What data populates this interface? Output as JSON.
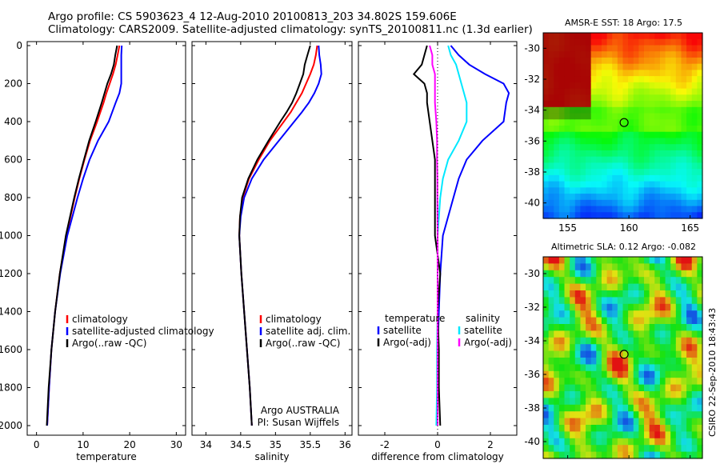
{
  "header": {
    "line1": "Argo profile: CS 5903623_4 12-Aug-2010 20100813_203 34.802S 159.606E",
    "line2": "Climatology: CARS2009. Satellite-adjusted climatology: synTS_20100811.nc (1.3d earlier)"
  },
  "sidebar_text": "CSIRO 22-Sep-2010 18:43:43",
  "colors": {
    "red": "#ff0000",
    "blue": "#0000ff",
    "black": "#000000",
    "cyan": "#00e8ff",
    "magenta": "#ff00ff"
  },
  "chart_data": [
    {
      "type": "line",
      "xlabel": "temperature",
      "xlim": [
        -2,
        32
      ],
      "ylim": [
        2050,
        0
      ],
      "xticks": [
        "0",
        "10",
        "20",
        "30"
      ],
      "yticks": [
        "0",
        "200",
        "400",
        "600",
        "800",
        "1000",
        "1200",
        "1400",
        "1600",
        "1800",
        "2000"
      ],
      "legend": [
        "climatology",
        "satellite-adjusted climatology",
        "Argo(..raw -QC)"
      ],
      "depth": [
        0,
        50,
        100,
        150,
        200,
        250,
        300,
        400,
        500,
        600,
        700,
        800,
        1000,
        1200,
        1400,
        1600,
        1800,
        2000
      ],
      "series": [
        {
          "name": "climatology",
          "color": "red",
          "values": [
            17.8,
            17.4,
            17.0,
            16.4,
            15.7,
            15.0,
            14.4,
            13.0,
            11.5,
            10.3,
            9.2,
            8.2,
            6.4,
            5.0,
            4.0,
            3.2,
            2.7,
            2.3
          ]
        },
        {
          "name": "satellite-adjusted climatology",
          "color": "blue",
          "values": [
            18.3,
            18.2,
            18.2,
            18.2,
            18.2,
            17.8,
            17.0,
            15.5,
            13.2,
            11.4,
            10.0,
            8.8,
            6.6,
            5.1,
            4.0,
            3.2,
            2.7,
            2.3
          ]
        },
        {
          "name": "Argo(..raw -QC)",
          "color": "black",
          "values": [
            17.3,
            16.9,
            16.6,
            16.0,
            15.2,
            14.6,
            14.0,
            12.7,
            11.3,
            10.2,
            9.1,
            8.1,
            6.3,
            5.0,
            4.0,
            3.2,
            2.6,
            2.2
          ]
        }
      ]
    },
    {
      "type": "line",
      "xlabel": "salinity",
      "xlim": [
        33.8,
        36.1
      ],
      "ylim": [
        2050,
        0
      ],
      "xticks": [
        "34",
        "34.5",
        "35",
        "35.5",
        "36"
      ],
      "legend": [
        "climatology",
        "satellite adj. clim.",
        "Argo(..raw -QC)"
      ],
      "annotations": [
        "Argo AUSTRALIA",
        "PI: Susan Wijffels"
      ],
      "depth": [
        0,
        50,
        100,
        150,
        200,
        250,
        300,
        350,
        400,
        500,
        600,
        700,
        800,
        900,
        1000,
        1200,
        1400,
        1600,
        1800,
        2000
      ],
      "series": [
        {
          "name": "climatology",
          "color": "red",
          "values": [
            35.6,
            35.58,
            35.55,
            35.5,
            35.44,
            35.38,
            35.3,
            35.22,
            35.12,
            34.92,
            34.76,
            34.62,
            34.53,
            34.49,
            34.48,
            34.51,
            34.55,
            34.59,
            34.63,
            34.66
          ]
        },
        {
          "name": "satellite adj. clim.",
          "color": "blue",
          "values": [
            35.62,
            35.63,
            35.65,
            35.66,
            35.62,
            35.56,
            35.48,
            35.38,
            35.27,
            35.05,
            34.83,
            34.66,
            34.55,
            34.5,
            34.48,
            34.51,
            34.55,
            34.59,
            34.63,
            34.66
          ]
        },
        {
          "name": "Argo(..raw -QC)",
          "color": "black",
          "values": [
            35.5,
            35.46,
            35.42,
            35.4,
            35.35,
            35.3,
            35.24,
            35.16,
            35.07,
            34.9,
            34.74,
            34.61,
            34.52,
            34.49,
            34.48,
            34.51,
            34.55,
            34.59,
            34.63,
            34.66
          ]
        }
      ]
    },
    {
      "type": "line",
      "xlabel": "difference from climatology",
      "xlim": [
        -3,
        3
      ],
      "ylim": [
        2050,
        0
      ],
      "xticks": [
        "-2",
        "0",
        "2"
      ],
      "legend_left": {
        "title": "temperature",
        "items": [
          "satellite",
          "Argo(-adj)"
        ]
      },
      "legend_right": {
        "title": "salinity",
        "items": [
          "satellite",
          "Argo(-adj)"
        ]
      },
      "depth": [
        0,
        50,
        100,
        150,
        200,
        250,
        300,
        400,
        500,
        600,
        700,
        800,
        1000,
        1200,
        1400,
        1600,
        1800,
        2000
      ],
      "series": [
        {
          "name": "temperature satellite",
          "color": "blue",
          "values": [
            0.5,
            0.8,
            1.2,
            1.8,
            2.5,
            2.7,
            2.6,
            2.5,
            1.7,
            1.1,
            0.8,
            0.6,
            0.2,
            0.1,
            0.05,
            0.0,
            0.0,
            0.0
          ]
        },
        {
          "name": "temperature Argo(-adj)",
          "color": "black",
          "values": [
            -0.4,
            -0.5,
            -0.6,
            -0.9,
            -0.5,
            -0.4,
            -0.4,
            -0.3,
            -0.2,
            -0.1,
            -0.1,
            -0.1,
            -0.1,
            0.1,
            0.0,
            0.05,
            0.05,
            0.1
          ]
        },
        {
          "name": "salinity satellite",
          "color": "cyan",
          "values": [
            0.4,
            0.5,
            0.7,
            0.8,
            0.9,
            1.0,
            1.1,
            1.1,
            0.8,
            0.4,
            0.2,
            0.1,
            0.0,
            0.0,
            0.0,
            -0.02,
            -0.02,
            -0.05
          ]
        },
        {
          "name": "salinity Argo(-adj)",
          "color": "magenta",
          "values": [
            -0.3,
            -0.2,
            -0.2,
            -0.1,
            -0.1,
            -0.1,
            -0.1,
            -0.05,
            -0.02,
            -0.02,
            -0.01,
            -0.01,
            0.0,
            0.0,
            0.0,
            0.0,
            0.0,
            0.0
          ]
        }
      ]
    },
    {
      "type": "heatmap",
      "title": "AMSR-E SST: 18 Argo: 17.5",
      "xlim": [
        153,
        166
      ],
      "ylim": [
        -41,
        -29
      ],
      "xticks": [
        "155",
        "160",
        "165"
      ],
      "yticks": [
        "-30",
        "-32",
        "-34",
        "-36",
        "-38",
        "-40"
      ],
      "marker": {
        "lon": 159.606,
        "lat": -34.802
      }
    },
    {
      "type": "heatmap",
      "title": "Altimetric SLA: 0.12 Argo: -0.082",
      "xlim": [
        153,
        166
      ],
      "ylim": [
        -41,
        -29
      ],
      "xticks": [
        "155",
        "160",
        "165"
      ],
      "yticks": [
        "-30",
        "-32",
        "-34",
        "-36",
        "-38",
        "-40"
      ],
      "marker": {
        "lon": 159.606,
        "lat": -34.802
      }
    }
  ]
}
